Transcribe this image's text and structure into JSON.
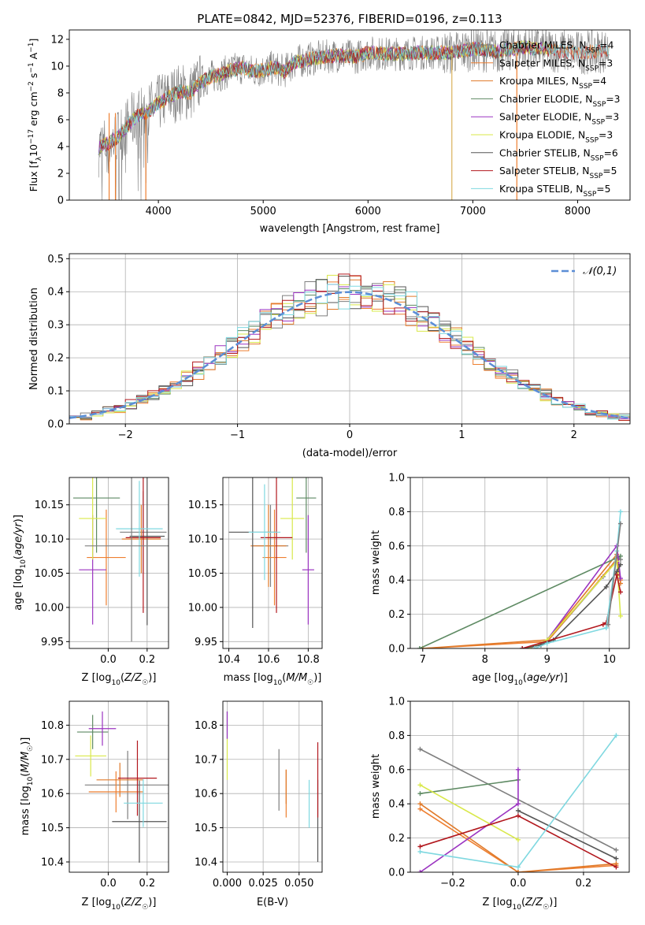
{
  "figure": {
    "title": "PLATE=0842, MJD=52376, FIBERID=0196, z=0.113"
  },
  "model_names": [
    "Chabrier MILES, N$_{SSP}$=4",
    "Salpeter MILES, N$_{SSP}$=3",
    "Kroupa MILES, N$_{SSP}$=4",
    "Chabrier ELODIE, N$_{SSP}$=3",
    "Salpeter ELODIE, N$_{SSP}$=3",
    "Kroupa ELODIE, N$_{SSP}$=3",
    "Chabrier STELIB, N$_{SSP}$=6",
    "Salpeter STELIB, N$_{SSP}$=5",
    "Kroupa STELIB, N$_{SSP}$=5"
  ],
  "model_legend": [
    {
      "base": "Chabrier MILES, N",
      "sub": "SSP",
      "tail": "=4"
    },
    {
      "base": "Salpeter MILES, N",
      "sub": "SSP",
      "tail": "=3"
    },
    {
      "base": "Kroupa MILES, N",
      "sub": "SSP",
      "tail": "=4"
    },
    {
      "base": "Chabrier ELODIE, N",
      "sub": "SSP",
      "tail": "=3"
    },
    {
      "base": "Salpeter ELODIE, N",
      "sub": "SSP",
      "tail": "=3"
    },
    {
      "base": "Kroupa ELODIE, N",
      "sub": "SSP",
      "tail": "=3"
    },
    {
      "base": "Chabrier STELIB, N",
      "sub": "SSP",
      "tail": "=6"
    },
    {
      "base": "Salpeter STELIB, N",
      "sub": "SSP",
      "tail": "=5"
    },
    {
      "base": "Kroupa STELIB, N",
      "sub": "SSP",
      "tail": "=5"
    }
  ],
  "model_colors": [
    "#7f7f7f",
    "#ee7f30",
    "#e07a2a",
    "#5e8a63",
    "#9b34c1",
    "#d9e84a",
    "#555555",
    "#b2181e",
    "#7fd8e0"
  ],
  "chart_data": [
    {
      "id": "spectrum",
      "type": "line",
      "ylabel": "Flux [f_λ 10^-17 erg cm^-2 s^-1 A^-1]",
      "xlabel": "wavelength [Angstrom, rest frame]",
      "xlim": [
        3150,
        8500
      ],
      "ylim": [
        0,
        12.7
      ],
      "xticks": [
        4000,
        5000,
        6000,
        7000,
        8000
      ],
      "yticks": [
        0,
        2,
        4,
        6,
        8,
        10,
        12
      ],
      "data_series_color": "#808080",
      "data_wavelength_range": [
        3430,
        8300
      ],
      "continuum": [
        [
          3430,
          3.9
        ],
        [
          3600,
          4.6
        ],
        [
          3700,
          5.5
        ],
        [
          3800,
          6.3
        ],
        [
          3900,
          6.6
        ],
        [
          4000,
          7.2
        ],
        [
          4100,
          7.7
        ],
        [
          4200,
          8.1
        ],
        [
          4300,
          8.0
        ],
        [
          4400,
          8.8
        ],
        [
          4500,
          9.2
        ],
        [
          4600,
          9.4
        ],
        [
          4700,
          9.7
        ],
        [
          4800,
          9.9
        ],
        [
          4900,
          9.6
        ],
        [
          5000,
          9.7
        ],
        [
          5100,
          9.9
        ],
        [
          5200,
          9.6
        ],
        [
          5300,
          10.3
        ],
        [
          5500,
          10.6
        ],
        [
          5700,
          10.8
        ],
        [
          5900,
          10.7
        ],
        [
          6000,
          11.0
        ],
        [
          6200,
          10.9
        ],
        [
          6500,
          11.0
        ],
        [
          6800,
          11.0
        ],
        [
          7000,
          11.3
        ],
        [
          7200,
          11.1
        ],
        [
          7500,
          11.4
        ],
        [
          8000,
          11.0
        ],
        [
          8300,
          11.2
        ]
      ],
      "bad_pixel_drops": [
        3530,
        3590,
        3880,
        6800,
        7420
      ]
    },
    {
      "id": "residuals",
      "type": "histogram",
      "xlabel": "(data-model)/error",
      "ylabel": "Normed distribution",
      "xlim": [
        -2.5,
        2.5
      ],
      "ylim": [
        0,
        0.515
      ],
      "xticks": [
        -2,
        -1,
        0,
        1,
        2
      ],
      "yticks": [
        0.0,
        0.1,
        0.2,
        0.3,
        0.4,
        0.5
      ],
      "reference_curve": {
        "label": "𝒩(0,1)",
        "color": "#5b8ed6",
        "mean": 0,
        "sigma": 1
      },
      "bin_width": 0.1
    },
    {
      "id": "age_vs_Z",
      "type": "errorbar",
      "xlabel": "Z [log10(Z/Z☉)]",
      "ylabel": "age  [log10(age/yr)]",
      "xlim": [
        -0.2,
        0.31
      ],
      "ylim": [
        9.94,
        10.19
      ],
      "xticks": [
        0.0,
        0.2
      ],
      "yticks": [
        9.95,
        10.0,
        10.05,
        10.1,
        10.15
      ],
      "points": [
        {
          "model": 0,
          "x": 0.18,
          "xerr": 0.12,
          "y": 10.11,
          "yerr": 0.06
        },
        {
          "model": 1,
          "x": -0.01,
          "xerr": 0.1,
          "y": 10.073,
          "yerr": 0.07
        },
        {
          "model": 2,
          "x": 0.17,
          "xerr": 0.1,
          "y": 10.1,
          "yerr": 0.05
        },
        {
          "model": 3,
          "x": -0.06,
          "xerr": 0.12,
          "y": 10.16,
          "yerr": 0.08
        },
        {
          "model": 4,
          "x": -0.08,
          "xerr": 0.07,
          "y": 10.055,
          "yerr": 0.08
        },
        {
          "model": 5,
          "x": -0.08,
          "xerr": 0.07,
          "y": 10.13,
          "yerr": 0.06
        },
        {
          "model": 6,
          "x": 0.2,
          "xerr": 0.09,
          "y": 10.104,
          "yerr": 0.13
        },
        {
          "model": 7,
          "x": 0.18,
          "xerr": 0.09,
          "y": 10.102,
          "yerr": 0.11
        },
        {
          "model": 8,
          "x": 0.16,
          "xerr": 0.12,
          "y": 10.115,
          "yerr": 0.07
        }
      ],
      "extra_points": [
        {
          "model": 0,
          "x": 0.12,
          "xerr": 0.24,
          "y": 10.09,
          "yerr": 0.14
        }
      ]
    },
    {
      "id": "age_vs_mass",
      "type": "errorbar",
      "xlabel": "mass [log10(M/M☉)]",
      "ylabel": "",
      "xlim": [
        10.37,
        10.87
      ],
      "ylim": [
        9.94,
        10.19
      ],
      "xticks": [
        10.4,
        10.6,
        10.8
      ],
      "yticks": [
        9.95,
        10.0,
        10.05,
        10.1,
        10.15
      ],
      "points": [
        {
          "model": 0,
          "x": 10.61,
          "xerr": 0.09,
          "y": 10.09,
          "yerr": 0.06
        },
        {
          "model": 1,
          "x": 10.63,
          "xerr": 0.06,
          "y": 10.073,
          "yerr": 0.07
        },
        {
          "model": 2,
          "x": 10.6,
          "xerr": 0.09,
          "y": 10.09,
          "yerr": 0.06
        },
        {
          "model": 3,
          "x": 10.79,
          "xerr": 0.05,
          "y": 10.16,
          "yerr": 0.08
        },
        {
          "model": 4,
          "x": 10.8,
          "xerr": 0.03,
          "y": 10.055,
          "yerr": 0.08
        },
        {
          "model": 5,
          "x": 10.72,
          "xerr": 0.06,
          "y": 10.13,
          "yerr": 0.06
        },
        {
          "model": 6,
          "x": 10.52,
          "xerr": 0.12,
          "y": 10.11,
          "yerr": 0.14
        },
        {
          "model": 7,
          "x": 10.64,
          "xerr": 0.08,
          "y": 10.102,
          "yerr": 0.11
        },
        {
          "model": 8,
          "x": 10.58,
          "xerr": 0.08,
          "y": 10.11,
          "yerr": 0.07
        }
      ]
    },
    {
      "id": "massweight_vs_age",
      "type": "line",
      "xlabel": "age  [log10(age/yr)]",
      "ylabel": "mass weight",
      "xlim": [
        6.8,
        10.32
      ],
      "ylim": [
        0,
        1.0
      ],
      "xticks": [
        7,
        8,
        9,
        10
      ],
      "yticks": [
        0.0,
        0.2,
        0.4,
        0.6,
        0.8,
        1.0
      ],
      "series": [
        {
          "model": 0,
          "x": [
            8.7,
            9.0,
            9.9,
            10.13,
            10.18
          ],
          "y": [
            0.0,
            0.04,
            0.42,
            0.53,
            0.52
          ]
        },
        {
          "model": 1,
          "x": [
            7.0,
            9.0,
            10.12,
            10.18
          ],
          "y": [
            0.0,
            0.04,
            0.52,
            0.4
          ]
        },
        {
          "model": 2,
          "x": [
            7.0,
            9.0,
            10.12,
            10.18
          ],
          "y": [
            0.0,
            0.05,
            0.55,
            0.38
          ]
        },
        {
          "model": 3,
          "x": [
            6.95,
            10.18
          ],
          "y": [
            0.0,
            0.54
          ]
        },
        {
          "model": 4,
          "x": [
            8.7,
            9.0,
            10.12,
            10.18
          ],
          "y": [
            0.0,
            0.05,
            0.6,
            0.41
          ]
        },
        {
          "model": 5,
          "x": [
            8.7,
            9.0,
            10.12,
            10.18
          ],
          "y": [
            0.0,
            0.05,
            0.51,
            0.19
          ]
        },
        {
          "model": 6,
          "x": [
            8.6,
            8.9,
            9.1,
            9.95,
            10.12,
            10.18
          ],
          "y": [
            0.0,
            0.02,
            0.05,
            0.36,
            0.45,
            0.49
          ]
        },
        {
          "model": 7,
          "x": [
            8.6,
            9.9,
            9.95,
            10.12,
            10.18
          ],
          "y": [
            0.0,
            0.14,
            0.15,
            0.43,
            0.33
          ]
        },
        {
          "model": 8,
          "x": [
            8.8,
            9.0,
            9.95,
            10.12,
            10.18
          ],
          "y": [
            0.0,
            0.03,
            0.12,
            0.57,
            0.8
          ]
        },
        {
          "model": 0,
          "x": [
            9.98,
            10.18
          ],
          "y": [
            0.14,
            0.73
          ]
        }
      ]
    },
    {
      "id": "mass_vs_Z",
      "type": "errorbar",
      "xlabel": "Z [log10(Z/Z☉)]",
      "ylabel": "mass [log10(M/M☉)]",
      "xlim": [
        -0.2,
        0.31
      ],
      "ylim": [
        10.37,
        10.87
      ],
      "xticks": [
        0.0,
        0.2
      ],
      "yticks": [
        10.4,
        10.5,
        10.6,
        10.7,
        10.8
      ],
      "points": [
        {
          "model": 0,
          "x": 0.1,
          "xerr": 0.22,
          "y": 10.625,
          "yerr": 0.1
        },
        {
          "model": 1,
          "x": 0.04,
          "xerr": 0.14,
          "y": 10.605,
          "yerr": 0.06
        },
        {
          "model": 2,
          "x": 0.06,
          "xerr": 0.12,
          "y": 10.64,
          "yerr": 0.05
        },
        {
          "model": 3,
          "x": -0.08,
          "xerr": 0.08,
          "y": 10.78,
          "yerr": 0.05
        },
        {
          "model": 4,
          "x": -0.03,
          "xerr": 0.07,
          "y": 10.79,
          "yerr": 0.05
        },
        {
          "model": 5,
          "x": -0.09,
          "xerr": 0.08,
          "y": 10.71,
          "yerr": 0.06
        },
        {
          "model": 6,
          "x": 0.16,
          "xerr": 0.14,
          "y": 10.518,
          "yerr": 0.12
        },
        {
          "model": 7,
          "x": 0.15,
          "xerr": 0.1,
          "y": 10.645,
          "yerr": 0.11
        },
        {
          "model": 8,
          "x": 0.18,
          "xerr": 0.1,
          "y": 10.572,
          "yerr": 0.07
        }
      ]
    },
    {
      "id": "mass_vs_ebv",
      "type": "errorbar",
      "xlabel": "E(B-V)",
      "ylabel": "",
      "xlim": [
        -0.003,
        0.066
      ],
      "ylim": [
        10.37,
        10.87
      ],
      "xticks": [
        0.0,
        0.025,
        0.05
      ],
      "yticks": [
        10.4,
        10.5,
        10.6,
        10.7,
        10.8
      ],
      "points": [
        {
          "model": 0,
          "x": 0.036,
          "y": 10.64,
          "yerr": 0.09
        },
        {
          "model": 1,
          "x": 0.041,
          "y": 10.6,
          "yerr": 0.07
        },
        {
          "model": 2,
          "x": 0.041,
          "y": 10.62,
          "yerr": 0.05
        },
        {
          "model": 3,
          "x": 0.0,
          "y": 10.8,
          "yerr": 0.04
        },
        {
          "model": 4,
          "x": 0.0,
          "y": 10.8,
          "yerr": 0.04
        },
        {
          "model": 5,
          "x": 0.0,
          "y": 10.7,
          "yerr": 0.06
        },
        {
          "model": 6,
          "x": 0.063,
          "y": 10.52,
          "yerr": 0.12
        },
        {
          "model": 7,
          "x": 0.063,
          "y": 10.64,
          "yerr": 0.11
        },
        {
          "model": 8,
          "x": 0.057,
          "y": 10.57,
          "yerr": 0.07
        }
      ]
    },
    {
      "id": "massweight_vs_Z",
      "type": "line",
      "xlabel": "Z [log10(Z/Z☉)]",
      "ylabel": "mass weight",
      "xlim": [
        -0.33,
        0.34
      ],
      "ylim": [
        0,
        1.0
      ],
      "xticks": [
        -0.2,
        0.0,
        0.2
      ],
      "yticks": [
        0.0,
        0.2,
        0.4,
        0.6,
        0.8,
        1.0
      ],
      "series": [
        {
          "model": 0,
          "x": [
            -0.3,
            0.3
          ],
          "y": [
            0.72,
            0.13
          ]
        },
        {
          "model": 1,
          "x": [
            -0.3,
            0.0,
            0.3
          ],
          "y": [
            0.37,
            0.0,
            0.04
          ]
        },
        {
          "model": 2,
          "x": [
            -0.3,
            0.0,
            0.3
          ],
          "y": [
            0.4,
            0.0,
            0.05
          ]
        },
        {
          "model": 3,
          "x": [
            -0.3,
            0.0
          ],
          "y": [
            0.46,
            0.54
          ]
        },
        {
          "model": 4,
          "x": [
            -0.3,
            0.0,
            0.0
          ],
          "y": [
            0.0,
            0.4,
            0.6
          ]
        },
        {
          "model": 5,
          "x": [
            -0.3,
            0.0
          ],
          "y": [
            0.51,
            0.19
          ]
        },
        {
          "model": 6,
          "x": [
            0.0,
            0.3
          ],
          "y": [
            0.36,
            0.08
          ]
        },
        {
          "model": 7,
          "x": [
            -0.3,
            0.0,
            0.3
          ],
          "y": [
            0.15,
            0.33,
            0.03
          ]
        },
        {
          "model": 8,
          "x": [
            -0.3,
            0.0,
            0.3
          ],
          "y": [
            0.12,
            0.03,
            0.8
          ]
        }
      ]
    }
  ]
}
